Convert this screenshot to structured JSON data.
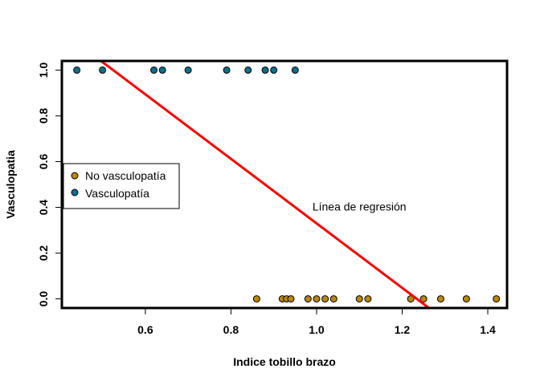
{
  "chart_data": {
    "type": "scatter",
    "title": "",
    "xlabel": "Indice tobillo brazo",
    "ylabel": "Vasculopatia",
    "xlim": [
      0.405,
      1.445
    ],
    "ylim": [
      -0.04,
      1.04
    ],
    "xticks": [
      0.6,
      0.8,
      1.0,
      1.2,
      1.4
    ],
    "xtick_labels": [
      "0.6",
      "0.8",
      "1.0",
      "1.2",
      "1.4"
    ],
    "yticks": [
      0.0,
      0.2,
      0.4,
      0.6,
      0.8,
      1.0
    ],
    "ytick_labels": [
      "0.0",
      "0.2",
      "0.4",
      "0.6",
      "0.8",
      "1.0"
    ],
    "grid": false,
    "legend_position": "left",
    "series": [
      {
        "name": "No vasculopatía",
        "color": "#B8860B",
        "x": [
          0.86,
          0.92,
          0.93,
          0.94,
          0.98,
          1.0,
          1.02,
          1.04,
          1.1,
          1.12,
          1.22,
          1.25,
          1.29,
          1.35,
          1.42
        ],
        "y": [
          0,
          0,
          0,
          0,
          0,
          0,
          0,
          0,
          0,
          0,
          0,
          0,
          0,
          0,
          0
        ]
      },
      {
        "name": "Vasculopatía",
        "color": "#0F6E8C",
        "x": [
          0.44,
          0.5,
          0.62,
          0.64,
          0.7,
          0.79,
          0.84,
          0.88,
          0.9,
          0.95
        ],
        "y": [
          1,
          1,
          1,
          1,
          1,
          1,
          1,
          1,
          1,
          1
        ]
      }
    ],
    "regression_line": {
      "color": "#FF0000",
      "intercept": 1.74,
      "slope": -1.41
    },
    "annotations": [
      {
        "text": "Línea de regresión",
        "x": 1.1,
        "y": 0.4
      }
    ]
  }
}
